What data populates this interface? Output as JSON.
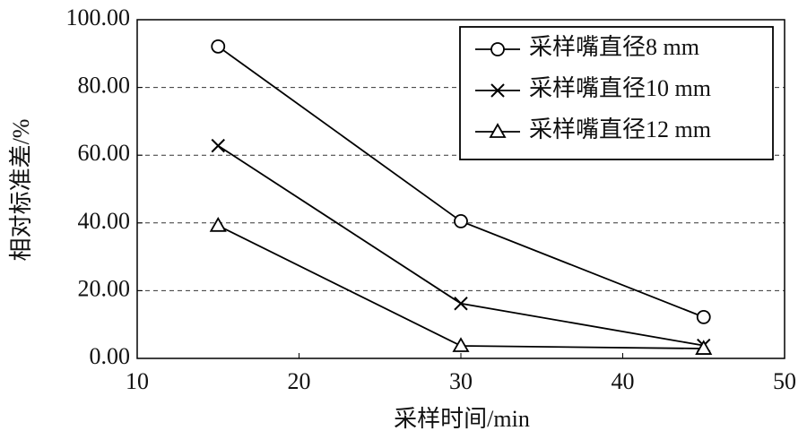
{
  "chart_data": {
    "type": "line",
    "x_label": "采样时间/min",
    "y_label": "相对标准差/%",
    "x": [
      15,
      30,
      45
    ],
    "series": [
      {
        "name": "采样嘴直径8 mm",
        "color": "#000000",
        "marker": "circle",
        "values": [
          92.1,
          40.5,
          12.2
        ]
      },
      {
        "name": "采样嘴直径10 mm",
        "color": "#000000",
        "marker": "x",
        "values": [
          62.8,
          16.2,
          3.8
        ]
      },
      {
        "name": "采样嘴直径12 mm",
        "color": "#000000",
        "marker": "triangle",
        "values": [
          39.2,
          3.7,
          2.9
        ]
      }
    ],
    "xlim": [
      10,
      50
    ],
    "xticks": [
      10,
      20,
      30,
      40,
      50
    ],
    "ylim": [
      0,
      100
    ],
    "yticks": [
      {
        "value": 0,
        "label": "0.00"
      },
      {
        "value": 20,
        "label": "20.00"
      },
      {
        "value": 40,
        "label": "40.00"
      },
      {
        "value": 60,
        "label": "60.00"
      },
      {
        "value": 80,
        "label": "80.00"
      },
      {
        "value": 100,
        "label": "100.00"
      }
    ],
    "grid": true,
    "legend": "upper right"
  }
}
